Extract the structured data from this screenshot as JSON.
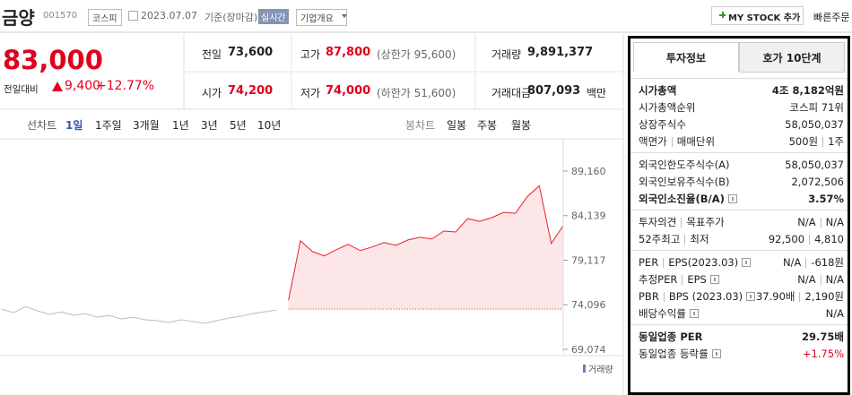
{
  "header": {
    "name": "금양",
    "code": "001570",
    "market": "코스피",
    "date": "2023.07.07",
    "basis": "기준(장마감)",
    "realtime": "실시간",
    "overview": "기업개요",
    "mystock": "MY STOCK 추가",
    "quick_order": "빠른주문"
  },
  "price": {
    "current": "83,000",
    "change_label": "전일대비",
    "change": "9,400",
    "change_rate": "+12.77%"
  },
  "summary": [
    [
      {
        "label": "전일",
        "value": "73,600"
      },
      {
        "label": "고가",
        "value": "87,800",
        "note": "(상한가 95,600)",
        "color": "#e0001b"
      },
      {
        "label": "거래량",
        "value": "9,891,377"
      }
    ],
    [
      {
        "label": "시가",
        "value": "74,200",
        "color": "#e0001b"
      },
      {
        "label": "저가",
        "value": "74,000",
        "note": "(하한가 51,600)",
        "color": "#e0001b"
      },
      {
        "label": "거래대금",
        "value": "807,093",
        "unit": "백만"
      }
    ]
  ],
  "chart_tabs": {
    "line_label": "선차트",
    "periods": [
      "1일",
      "1주일",
      "3개월",
      "1년",
      "3년",
      "5년",
      "10년"
    ],
    "active": 0,
    "candle_label": "봉차트",
    "candles": [
      "일봉",
      "주봉",
      "월봉"
    ]
  },
  "chart_data": {
    "type": "line",
    "ylim": [
      68569,
      92793
    ],
    "yticks": [
      {
        "value": 89160,
        "label": "89,160"
      },
      {
        "value": 84139,
        "label": "84,139"
      },
      {
        "value": 79117,
        "label": "79,117"
      },
      {
        "value": 74096,
        "label": "74,096"
      },
      {
        "value": 69074,
        "label": "69,074"
      }
    ],
    "baseline": 73600,
    "area_color": "#fde6e8",
    "volume_label": "거래량",
    "series": [
      {
        "color": "#bdbdbd",
        "values": [
          73600,
          73200,
          73900,
          73400,
          73000,
          73300,
          72900,
          73100,
          72700,
          72900,
          72500,
          72700,
          72400,
          72300,
          72100,
          72400,
          72200,
          72000,
          72300,
          72600,
          72800,
          73100,
          73300,
          73500,
          null,
          null,
          null,
          null,
          null,
          null,
          null,
          null,
          null,
          null,
          null,
          null,
          null,
          null,
          null,
          null,
          null,
          null,
          null,
          null,
          null,
          null,
          null,
          null
        ]
      },
      {
        "color": "#e8202a",
        "values": [
          null,
          null,
          null,
          null,
          null,
          null,
          null,
          null,
          null,
          null,
          null,
          null,
          null,
          null,
          null,
          null,
          null,
          null,
          null,
          null,
          null,
          null,
          null,
          null,
          74600,
          81300,
          80100,
          79600,
          80300,
          80900,
          80200,
          80600,
          81100,
          80800,
          81400,
          81700,
          81500,
          82400,
          82300,
          83800,
          83500,
          83900,
          84500,
          84400,
          86300,
          87500,
          81000,
          83000
        ]
      }
    ]
  },
  "info": {
    "tabs": [
      "투자정보",
      "호가 10단계"
    ],
    "active_tab": 0,
    "sections": [
      [
        {
          "labels": [
            "시가총액"
          ],
          "values": [
            "4조 8,182억원"
          ],
          "bold": true
        },
        {
          "labels": [
            "시가총액순위"
          ],
          "values": [
            "코스피 71위"
          ]
        },
        {
          "labels": [
            "상장주식수"
          ],
          "values": [
            "58,050,037"
          ]
        },
        {
          "labels": [
            "액면가",
            "매매단위"
          ],
          "values": [
            "500원",
            "1주"
          ]
        }
      ],
      [
        {
          "labels": [
            "외국인한도주식수(A)"
          ],
          "values": [
            "58,050,037"
          ]
        },
        {
          "labels": [
            "외국인보유주식수(B)"
          ],
          "values": [
            "2,072,506"
          ]
        },
        {
          "labels": [
            "외국인소진율(B/A)"
          ],
          "values": [
            "3.57%"
          ],
          "bold": true,
          "help": true
        }
      ],
      [
        {
          "labels": [
            "투자의견",
            "목표주가"
          ],
          "values": [
            "N/A",
            "N/A"
          ]
        },
        {
          "labels": [
            "52주최고",
            "최저"
          ],
          "values": [
            "92,500",
            "4,810"
          ]
        }
      ],
      [
        {
          "labels": [
            "PER",
            "EPS(2023.03)"
          ],
          "values": [
            "N/A",
            "-618원"
          ],
          "help": true
        },
        {
          "labels": [
            "추정PER",
            "EPS"
          ],
          "values": [
            "N/A",
            "N/A"
          ],
          "help": true
        },
        {
          "labels": [
            "PBR",
            "BPS (2023.03)"
          ],
          "values": [
            "37.90배",
            "2,190원"
          ],
          "help": true
        },
        {
          "labels": [
            "배당수익률"
          ],
          "values": [
            "N/A"
          ],
          "help": true
        }
      ],
      [
        {
          "labels": [
            "동일업종 PER"
          ],
          "values": [
            "29.75배"
          ],
          "bold": true
        },
        {
          "labels": [
            "동일업종 등락률"
          ],
          "values": [
            "+1.75%"
          ],
          "help": true,
          "color": "#e0001b"
        }
      ]
    ]
  }
}
